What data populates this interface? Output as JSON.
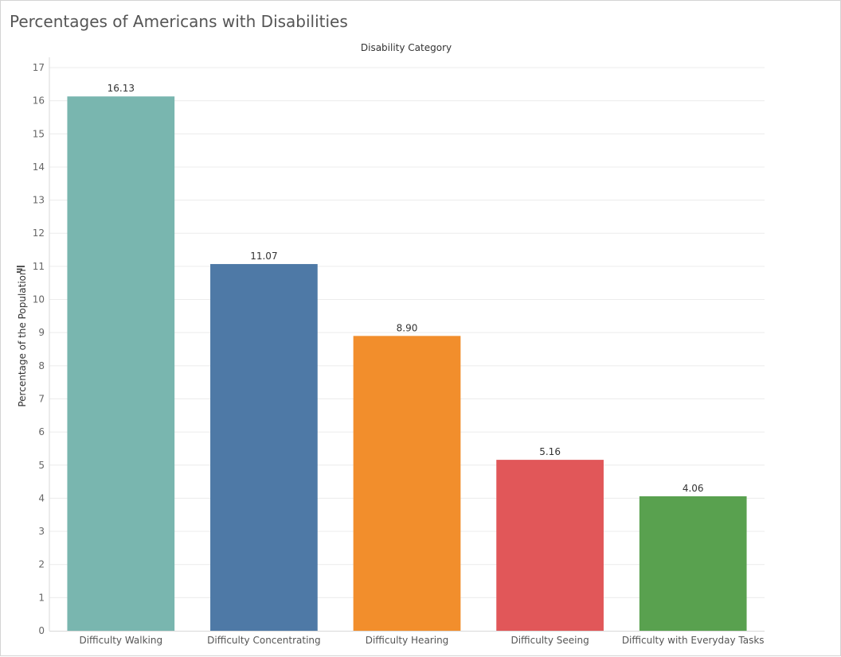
{
  "chart_data": {
    "type": "bar",
    "title": "Percentages of Americans with Disabilities",
    "column_header": "Disability Category",
    "xlabel": "",
    "ylabel": "Percentage of the Population",
    "ylim": [
      0,
      17
    ],
    "yticks": [
      "0",
      "1",
      "2",
      "3",
      "4",
      "5",
      "6",
      "7",
      "8",
      "9",
      "10",
      "11",
      "12",
      "13",
      "14",
      "15",
      "16",
      "17"
    ],
    "grid": true,
    "categories": [
      "Difficulty Walking",
      "Difficulty Concentrating",
      "Difficulty Hearing",
      "Difficulty Seeing",
      "Difficulty with Everyday Tasks"
    ],
    "values": [
      16.13,
      11.07,
      8.9,
      5.16,
      4.06
    ],
    "value_labels": [
      "16.13",
      "11.07",
      "8.90",
      "5.16",
      "4.06"
    ],
    "colors": [
      "#79b6af",
      "#4e79a6",
      "#f28e2c",
      "#e15759",
      "#59a14f"
    ]
  },
  "sort_icon": "sort-descending-icon"
}
